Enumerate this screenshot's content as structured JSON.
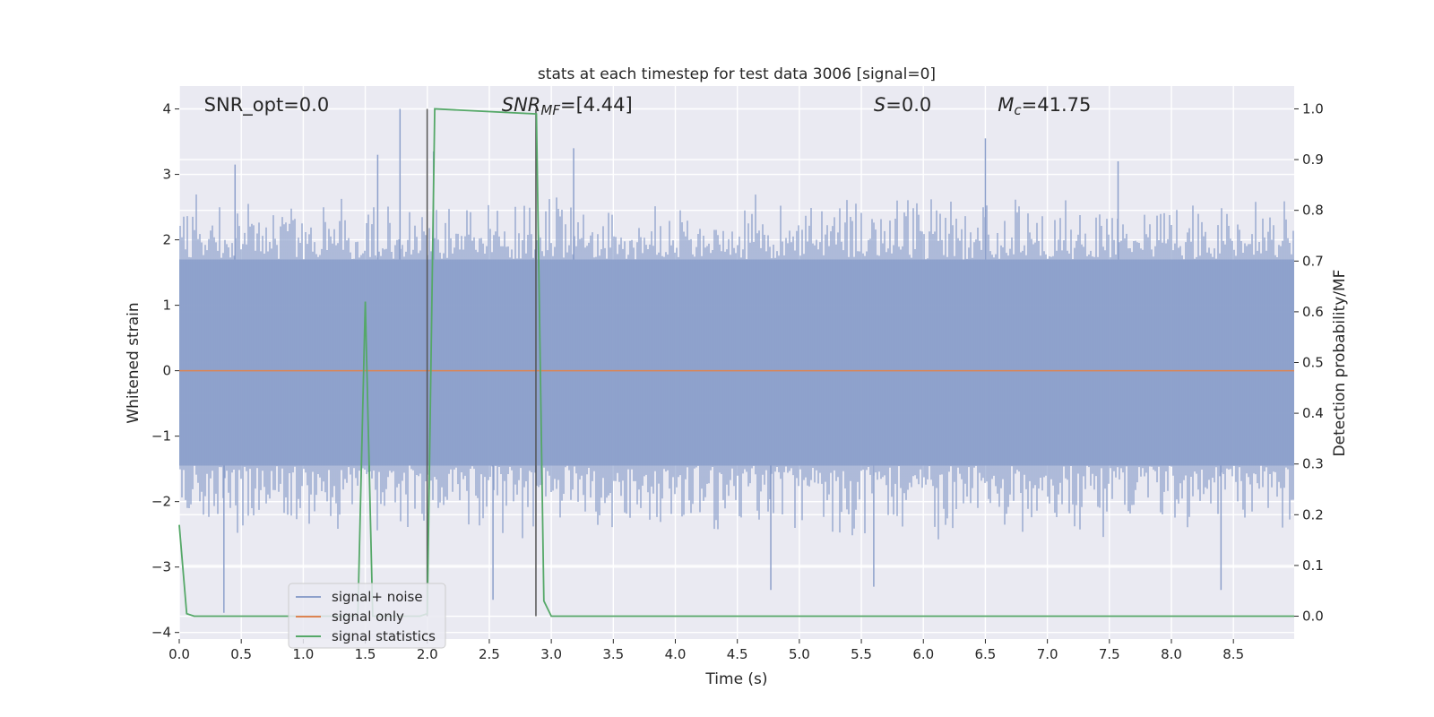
{
  "chart_data": {
    "type": "line",
    "title": "stats at each timestep for test data 3006 [signal=0]",
    "xlabel": "Time (s)",
    "ylabel_left": "Whitened strain",
    "ylabel_right": "Detection probability/MF",
    "xlim": [
      0.0,
      8.99
    ],
    "ylim_left": [
      -4.1,
      4.35
    ],
    "ylim_right": [
      -0.045,
      1.045
    ],
    "grid": true,
    "xticks": [
      "0.0",
      "0.5",
      "1.0",
      "1.5",
      "2.0",
      "2.5",
      "3.0",
      "3.5",
      "4.0",
      "4.5",
      "5.0",
      "5.5",
      "6.0",
      "6.5",
      "7.0",
      "7.5",
      "8.0",
      "8.5"
    ],
    "xtick_values": [
      0.0,
      0.5,
      1.0,
      1.5,
      2.0,
      2.5,
      3.0,
      3.5,
      4.0,
      4.5,
      5.0,
      5.5,
      6.0,
      6.5,
      7.0,
      7.5,
      8.0,
      8.5
    ],
    "yticks_left": [
      "4",
      "3",
      "2",
      "1",
      "0",
      "−1",
      "−2",
      "−3",
      "−4"
    ],
    "ytick_left_values": [
      4,
      3,
      2,
      1,
      0,
      -1,
      -2,
      -3,
      -4
    ],
    "yticks_right": [
      "1.0",
      "0.9",
      "0.8",
      "0.7",
      "0.6",
      "0.5",
      "0.4",
      "0.3",
      "0.2",
      "0.1",
      "0.0"
    ],
    "ytick_right_values": [
      1.0,
      0.9,
      0.8,
      0.7,
      0.6,
      0.5,
      0.4,
      0.3,
      0.2,
      0.1,
      0.0
    ],
    "annotations": [
      {
        "text": "SNR_opt=0.0",
        "x": 0.2
      },
      {
        "text": "SNR_MF=[4.44]",
        "x": 2.6
      },
      {
        "text": "S=0.0",
        "x": 5.6
      },
      {
        "text": "M_c=41.75",
        "x": 6.6
      }
    ],
    "legend": {
      "placement": "lower-left",
      "entries": [
        "signal+ noise",
        "signal only",
        "signal statistics"
      ]
    },
    "series": [
      {
        "name": "signal+ noise",
        "axis": "left",
        "style": "noise-envelope",
        "color": "#8da0cb",
        "band_low": -1.45,
        "band_high": 1.7,
        "typical_max": 2.8,
        "typical_min": -2.6,
        "peaks": [
          {
            "x": 0.36,
            "y": -3.7
          },
          {
            "x": 0.45,
            "y": 3.15
          },
          {
            "x": 1.6,
            "y": 3.3
          },
          {
            "x": 1.78,
            "y": 4.0
          },
          {
            "x": 2.05,
            "y": 3.35
          },
          {
            "x": 2.53,
            "y": -3.5
          },
          {
            "x": 3.18,
            "y": 3.4
          },
          {
            "x": 4.77,
            "y": -3.35
          },
          {
            "x": 5.6,
            "y": -3.3
          },
          {
            "x": 6.5,
            "y": 3.55
          },
          {
            "x": 7.57,
            "y": 3.2
          },
          {
            "x": 8.4,
            "y": -3.35
          }
        ]
      },
      {
        "name": "signal only",
        "axis": "left",
        "color": "#dd8452",
        "x": [
          0.0,
          8.99
        ],
        "y": [
          0.0,
          0.0
        ]
      },
      {
        "name": "signal statistics",
        "axis": "right",
        "color": "#55a868",
        "x": [
          0.0,
          0.06,
          0.12,
          1.44,
          1.5,
          1.56,
          1.94,
          2.0,
          2.06,
          2.88,
          2.94,
          3.0,
          8.99
        ],
        "y": [
          0.18,
          0.005,
          0.0,
          0.0,
          0.62,
          0.0,
          0.0,
          0.005,
          1.0,
          0.99,
          0.03,
          0.0,
          0.0
        ]
      },
      {
        "name": "",
        "axis": "right",
        "color": "#555555",
        "style": "vertical-markers",
        "x": [
          1.999,
          2.876
        ],
        "y_range": [
          0.0,
          1.0
        ]
      }
    ]
  }
}
